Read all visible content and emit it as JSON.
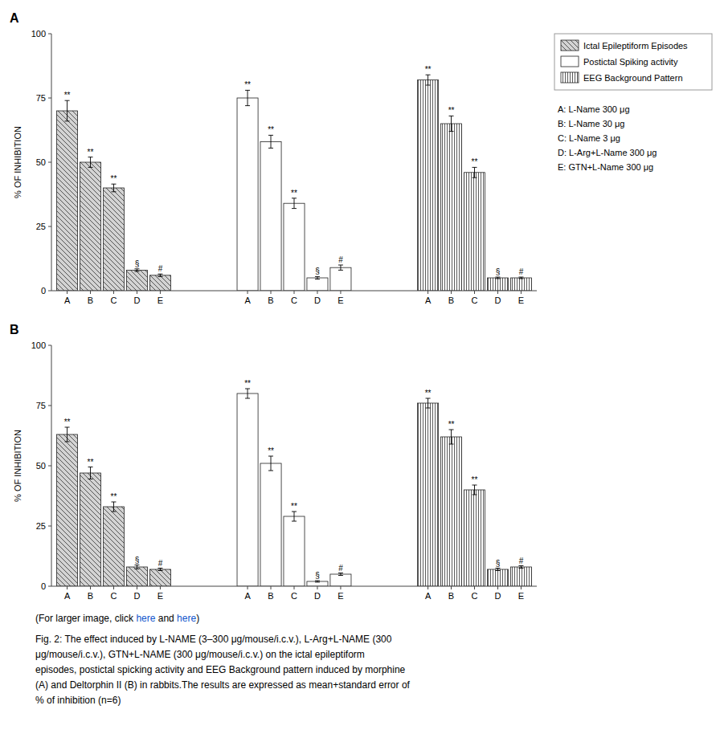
{
  "chart_data": [
    {
      "type": "bar",
      "title": "A",
      "categories": [
        "A",
        "B",
        "C",
        "D",
        "E"
      ],
      "series": [
        {
          "name": "Ictal Epileptiform Episodes",
          "color": "#d3d3d3",
          "values": [
            70,
            50,
            40,
            8,
            6
          ],
          "errors": [
            4,
            2,
            1.5,
            0.5,
            0.5
          ]
        },
        {
          "name": "Postictal Spiking activity",
          "color": "#ffffff",
          "values": [
            75,
            58,
            34,
            5,
            9
          ],
          "errors": [
            3,
            2.5,
            2,
            0.5,
            1
          ]
        },
        {
          "name": "EEG Background Pattern",
          "color": "#ffffff",
          "values": [
            82,
            65,
            46,
            5,
            5
          ],
          "errors": [
            2,
            3,
            2,
            0.3,
            0.3
          ]
        }
      ],
      "significance": [
        "**",
        "**",
        "**",
        "§",
        "#"
      ],
      "annotations": [
        "A: L-Name 300 μg",
        "B: L-Name 30 μg",
        "C: L-Name 3 μg",
        "D: L-Arg+L-Name 300 μg",
        "E: GTN+L-Name 300 μg"
      ],
      "ylabel": "% OF INHIBITION",
      "ylim": [
        0,
        100
      ],
      "yticks": [
        0,
        25,
        50,
        75,
        100
      ],
      "legend": "upper right",
      "grid": false
    },
    {
      "type": "bar",
      "title": "B",
      "categories": [
        "A",
        "B",
        "C",
        "D",
        "E"
      ],
      "series": [
        {
          "name": "Ictal Epileptiform Episodes",
          "color": "#d3d3d3",
          "values": [
            63,
            47,
            33,
            8,
            7
          ],
          "errors": [
            3,
            2.5,
            2,
            0.8,
            0.5
          ]
        },
        {
          "name": "Postictal Spiking activity",
          "color": "#ffffff",
          "values": [
            80,
            51,
            29,
            2,
            5
          ],
          "errors": [
            2,
            3,
            2,
            0.3,
            0.5
          ]
        },
        {
          "name": "EEG Background Pattern",
          "color": "#ffffff",
          "values": [
            76,
            62,
            40,
            7,
            8
          ],
          "errors": [
            2,
            3,
            2,
            0.5,
            0.5
          ]
        }
      ],
      "significance": [
        "**",
        "**",
        "**",
        "§",
        "#"
      ],
      "ylabel": "% OF INHIBITION",
      "ylim": [
        0,
        100
      ],
      "yticks": [
        0,
        25,
        50,
        75,
        100
      ],
      "grid": false
    }
  ],
  "caption": {
    "link": [
      {
        "text": "(For larger image, click "
      },
      {
        "text": "here",
        "color": "#1155CC"
      },
      {
        "text": " and "
      },
      {
        "text": "here",
        "color": "#1155CC"
      },
      {
        "text": ")"
      }
    ],
    "lines": [
      "Fig. 2: The effect induced by L-NAME (3–300 μg/mouse/i.c.v.), L-Arg+L-NAME (300",
      "μg/mouse/i.c.v.), GTN+L-NAME (300 μg/mouse/i.c.v.) on the ictal epileptiform",
      "episodes, postictal spicking activity and EEG Background pattern induced by morphine",
      "(A) and Deltorphin II (B) in rabbits.The results are expressed as mean+standard error of",
      "% of inhibition (n=6)"
    ]
  }
}
